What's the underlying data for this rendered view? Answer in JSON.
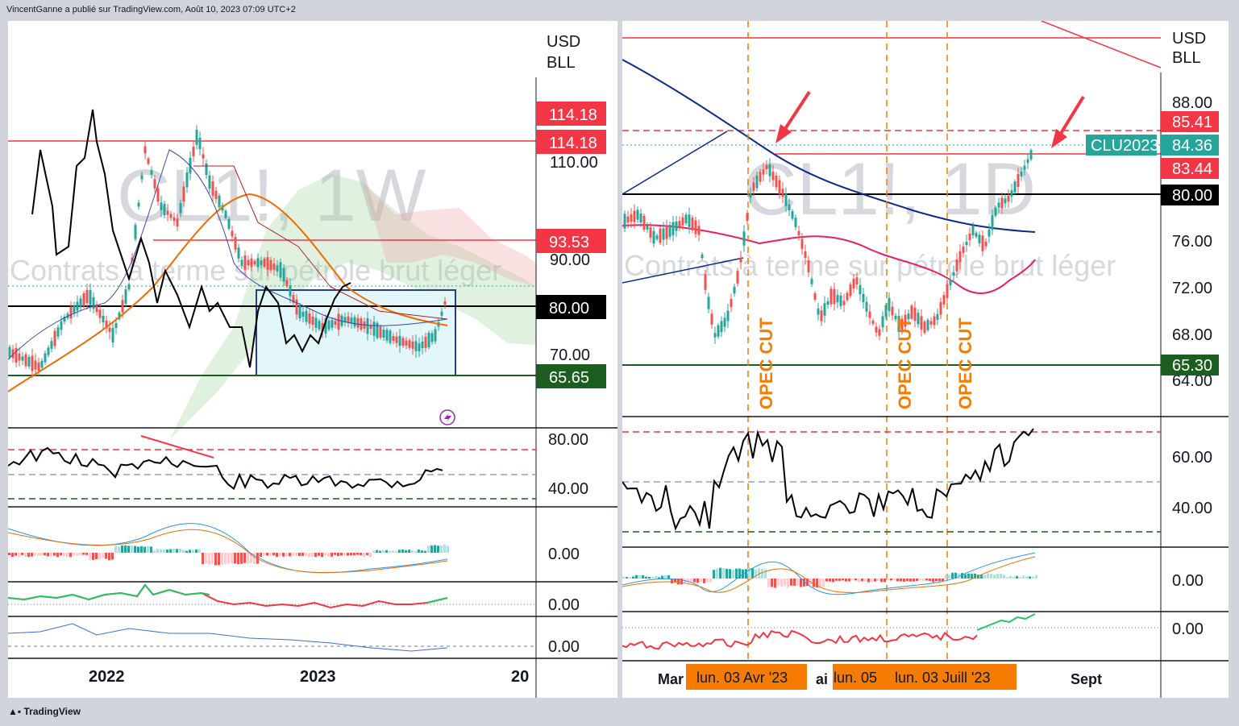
{
  "header": {
    "publisher_text": "VincentGanne a publié sur TradingView.com, Août 10, 2023 07:09 UTC+2"
  },
  "footer": {
    "brand": "TradingView"
  },
  "colors": {
    "red": "#f23645",
    "green": "#1b5e20",
    "orange": "#f57c00",
    "teal": "#26a69a",
    "navy": "#0d2a8c",
    "pink": "#e91e63"
  },
  "left_chart": {
    "watermark_symbol": "CL1!, 1W",
    "watermark_desc": "Contrats à terme sur pétrole brut léger",
    "currency_line1": "USD",
    "currency_line2": "BLL",
    "x_labels": [
      "2022",
      "2023",
      "20"
    ],
    "price_axis": [
      "110.00",
      "90.00",
      "70.00"
    ],
    "price_labels": [
      {
        "value": "114.18",
        "color": "#f23645"
      },
      {
        "value": "114.18",
        "color": "#f23645"
      },
      {
        "value": "93.53",
        "color": "#f23645"
      },
      {
        "value": "80.00",
        "color": "#000000"
      },
      {
        "value": "65.65",
        "color": "#1b5e20"
      }
    ],
    "rsi_axis": [
      "80.00",
      "40.00"
    ],
    "macd_axis": "0.00",
    "osc2_axis": "0.00",
    "osc3_axis": "0.00",
    "icon": "lightning-icon"
  },
  "right_chart": {
    "watermark_symbol": "CL1!, 1D",
    "watermark_desc": "Contrats à terme sur pétrole brut léger",
    "currency_line1": "USD",
    "currency_line2": "BLL",
    "price_axis": [
      "88.00",
      "76.00",
      "72.00",
      "68.00",
      "64.00"
    ],
    "price_labels": [
      {
        "value": "85.41",
        "color": "#f23645"
      },
      {
        "value": "84.36",
        "color": "#26a69a"
      },
      {
        "value": "83.44",
        "color": "#f23645"
      },
      {
        "value": "80.00",
        "color": "#000000"
      },
      {
        "value": "65.30",
        "color": "#1b5e20"
      }
    ],
    "symbol_tag": "CLU2023",
    "opec_labels": [
      "OPEC CUT",
      "OPEC CUT",
      "OPEC CUT"
    ],
    "rsi_axis": [
      "60.00",
      "40.00"
    ],
    "macd_axis": "0.00",
    "osc2_axis": "0.00",
    "x_labels": [
      "Mar",
      "ai",
      "Sept"
    ],
    "date_tags": [
      "lun. 03 Avr '23",
      "lun. 05",
      "lun. 03 Juill '23"
    ]
  }
}
